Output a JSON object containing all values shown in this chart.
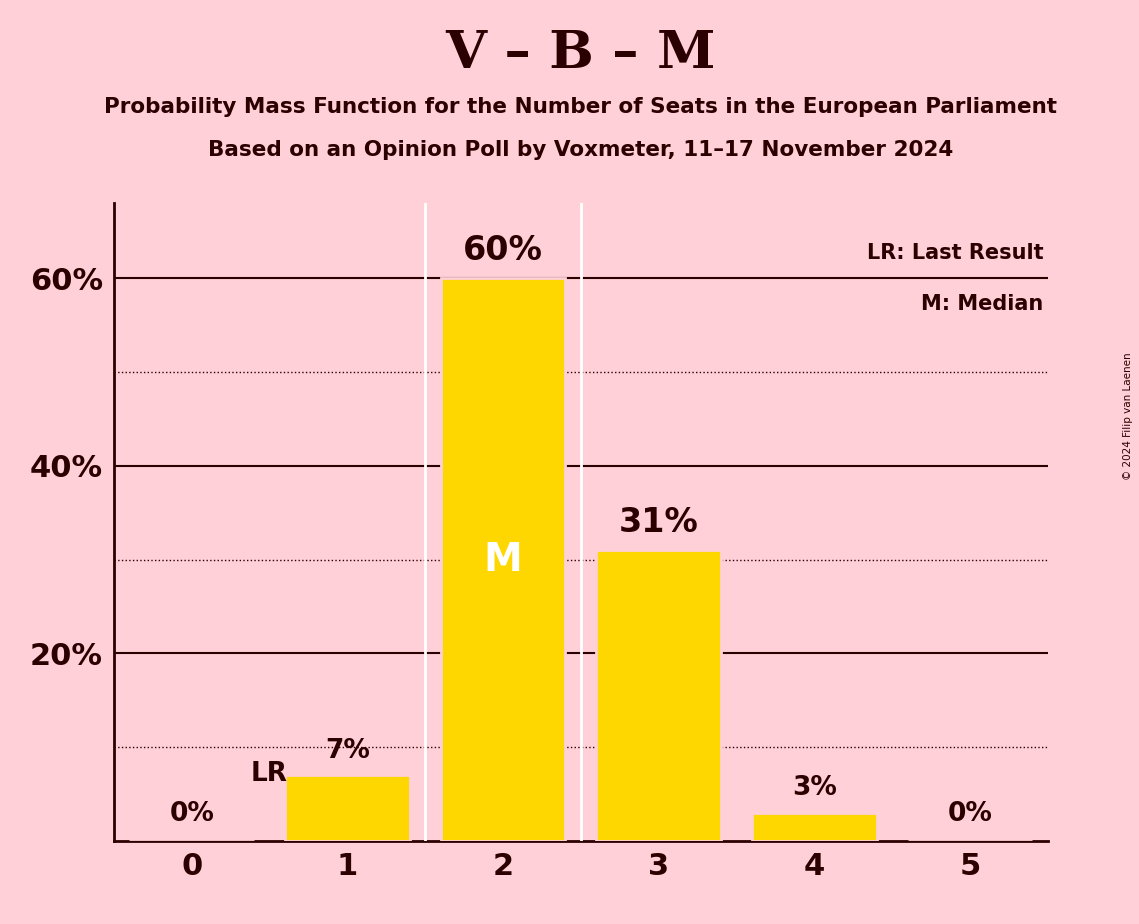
{
  "title": "V – B – M",
  "subtitle1": "Probability Mass Function for the Number of Seats in the European Parliament",
  "subtitle2": "Based on an Opinion Poll by Voxmeter, 11–17 November 2024",
  "copyright": "© 2024 Filip van Laenen",
  "categories": [
    0,
    1,
    2,
    3,
    4,
    5
  ],
  "values": [
    0,
    7,
    60,
    31,
    3,
    0
  ],
  "bar_color": "#FFD700",
  "background_color": "#FFD0D8",
  "text_color": "#2B0000",
  "median_seat": 2,
  "last_result_seat": 1,
  "median_label": "M",
  "lr_label": "LR",
  "legend_lr": "LR: Last Result",
  "legend_m": "M: Median",
  "yticks": [
    20,
    40,
    60
  ],
  "ytick_labels": [
    "20%",
    "40%",
    "60%"
  ],
  "dotted_yticks": [
    10,
    30,
    50
  ],
  "solid_yticks": [
    20,
    40,
    60
  ],
  "ylim": [
    0,
    68
  ],
  "xlim": [
    -0.5,
    5.5
  ],
  "white_line_color": "#FFFFFF"
}
